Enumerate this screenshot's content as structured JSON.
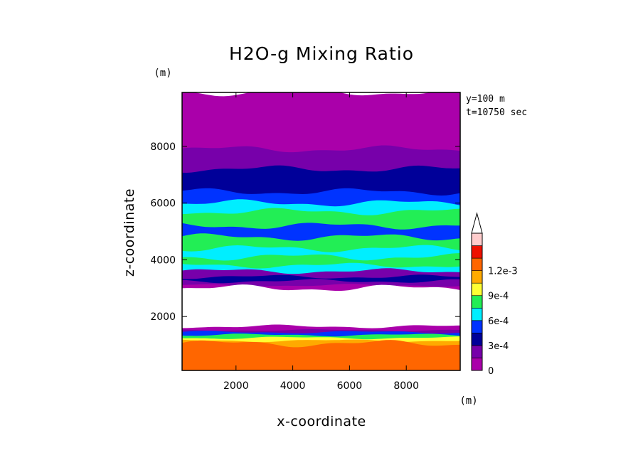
{
  "chart_data": {
    "type": "heatmap",
    "title": "H2O-g Mixing Ratio",
    "xlabel": "x-coordinate",
    "ylabel": "z-coordinate",
    "x_unit": "(m)",
    "y_unit": "(m)",
    "xlim": [
      100,
      9900
    ],
    "ylim": [
      100,
      9900
    ],
    "x_ticks": [
      2000,
      4000,
      6000,
      8000
    ],
    "y_ticks": [
      2000,
      4000,
      6000,
      8000
    ],
    "annotations": [
      "y=100 m",
      "t=10750 sec"
    ],
    "colorbar": {
      "labels": [
        "1.2e-3",
        "9e-4",
        "6e-4",
        "3e-4",
        "0"
      ],
      "label_values": [
        0.0012,
        0.0009,
        0.0006,
        0.0003,
        0
      ],
      "levels": [
        0,
        0.00015,
        0.0003,
        0.00045,
        0.0006,
        0.00075,
        0.0009,
        0.00105,
        0.0012
      ],
      "extend": "max",
      "colors": [
        "#aa00aa",
        "#7700aa",
        "#000099",
        "#0033ff",
        "#00eeff",
        "#22ee55",
        "#ffff33",
        "#ffaa00",
        "#ff6600",
        "#ee1100",
        "#ffcccc",
        "#ffffff"
      ]
    },
    "bands": [
      {
        "z_bottom": 100,
        "z_top": 1050,
        "value": 0.0013
      },
      {
        "z_bottom": 1050,
        "z_top": 1150,
        "value": 0.00115
      },
      {
        "z_bottom": 1150,
        "z_top": 1250,
        "value": 0.001
      },
      {
        "z_bottom": 1250,
        "z_top": 1350,
        "value": 0.0008
      },
      {
        "z_bottom": 1350,
        "z_top": 1450,
        "value": 0.00045
      },
      {
        "z_bottom": 1450,
        "z_top": 1520,
        "value": 0.0002
      },
      {
        "z_bottom": 1520,
        "z_top": 1650,
        "value": 7e-05
      },
      {
        "z_bottom": 1650,
        "z_top": 3000,
        "value": 0
      },
      {
        "z_bottom": 3000,
        "z_top": 3100,
        "value": 7e-05
      },
      {
        "z_bottom": 3100,
        "z_top": 3250,
        "value": 0.0002
      },
      {
        "z_bottom": 3250,
        "z_top": 3400,
        "value": 0.0004
      },
      {
        "z_bottom": 3400,
        "z_top": 3600,
        "value": 0.0002
      },
      {
        "z_bottom": 3600,
        "z_top": 3800,
        "value": 0.00065
      },
      {
        "z_bottom": 3800,
        "z_top": 4100,
        "value": 0.0008
      },
      {
        "z_bottom": 4100,
        "z_top": 4400,
        "value": 0.00065
      },
      {
        "z_bottom": 4400,
        "z_top": 4800,
        "value": 0.0008
      },
      {
        "z_bottom": 4800,
        "z_top": 5200,
        "value": 0.0005
      },
      {
        "z_bottom": 5200,
        "z_top": 5700,
        "value": 0.0008
      },
      {
        "z_bottom": 5700,
        "z_top": 6000,
        "value": 0.00065
      },
      {
        "z_bottom": 6000,
        "z_top": 6400,
        "value": 0.0005
      },
      {
        "z_bottom": 6400,
        "z_top": 6750,
        "value": 0.0004
      },
      {
        "z_bottom": 6750,
        "z_top": 7200,
        "value": 0.0003
      },
      {
        "z_bottom": 7200,
        "z_top": 7900,
        "value": 0.0002
      },
      {
        "z_bottom": 7900,
        "z_top": 8800,
        "value": 0.0001
      },
      {
        "z_bottom": 8800,
        "z_top": 9900,
        "value": 4e-05
      }
    ]
  }
}
